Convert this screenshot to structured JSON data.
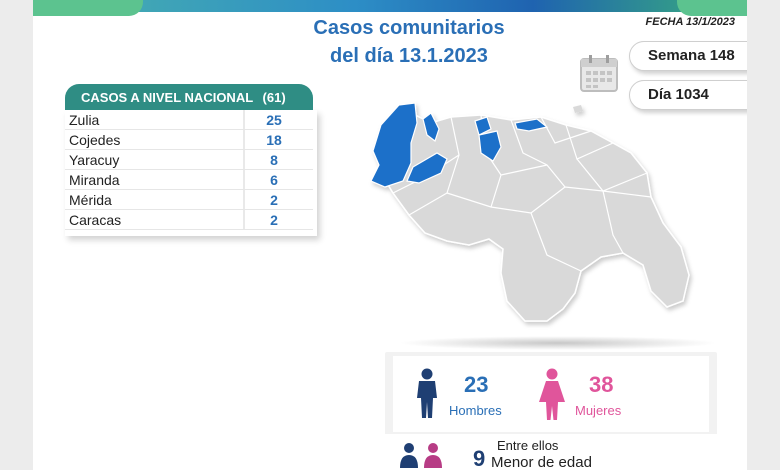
{
  "header": {
    "title_line1": "Casos comunitarios",
    "title_line2": "del día 13.1.2023",
    "fecha": "FECHA 13/1/2023"
  },
  "badges": {
    "semana": "Semana 148",
    "dia": "Día 1034"
  },
  "icons": {
    "calendar": "calendar-icon",
    "male": "male-person-icon",
    "female": "female-person-icon",
    "couple": "couple-icon"
  },
  "colors": {
    "title": "#2a6fb6",
    "table_header": "#2f8d84",
    "highlight_state": "#1e6fc9",
    "male": "#1f3f73",
    "female": "#e0559b"
  },
  "national": {
    "header": "CASOS A NIVEL NACIONAL",
    "total": "(61)",
    "rows": [
      {
        "state": "Zulia",
        "count": "25"
      },
      {
        "state": "Cojedes",
        "count": "18"
      },
      {
        "state": "Yaracuy",
        "count": "8"
      },
      {
        "state": "Miranda",
        "count": "6"
      },
      {
        "state": "Mérida",
        "count": "2"
      },
      {
        "state": "Caracas",
        "count": "2"
      }
    ]
  },
  "stats": {
    "men_count": "23",
    "men_label": "Hombres",
    "women_count": "38",
    "women_label": "Mujeres",
    "minors_count": "9",
    "minors_label_line1": "Entre ellos",
    "minors_label_line2": "Menor de edad"
  }
}
